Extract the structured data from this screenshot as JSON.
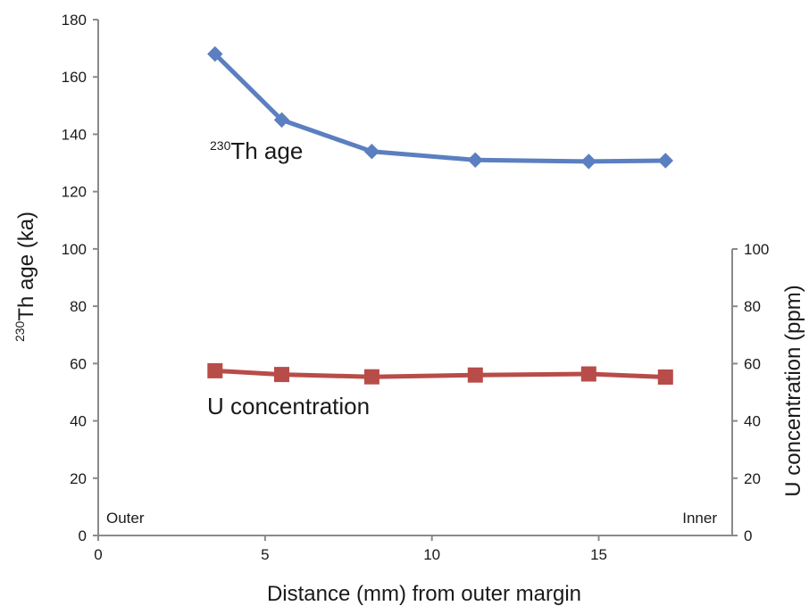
{
  "chart_data": {
    "type": "line",
    "xlabel": "Distance (mm) from outer margin",
    "ylabel_left_sup": "230",
    "ylabel_left": "Th age (ka)",
    "ylabel_right": "U concentration (ppm)",
    "xlim": [
      0,
      19
    ],
    "xticks": [
      "0",
      "5",
      "10",
      "15"
    ],
    "ylim_left": [
      0,
      180
    ],
    "yticks_left": [
      "0",
      "20",
      "40",
      "60",
      "80",
      "100",
      "120",
      "140",
      "160",
      "180"
    ],
    "ylim_right": [
      0,
      100
    ],
    "yticks_right": [
      "0",
      "20",
      "40",
      "60",
      "80",
      "100"
    ],
    "corner_left": "Outer",
    "corner_right": "Inner",
    "grid": false,
    "series": [
      {
        "name_sup": "230",
        "name": "Th age",
        "axis": "left",
        "color": "#5b7fc0",
        "marker": "diamond",
        "x": [
          3.5,
          5.5,
          8.2,
          11.3,
          14.7,
          17.0
        ],
        "y": [
          168,
          145,
          134,
          131,
          130.5,
          130.8
        ]
      },
      {
        "name": "U concentration",
        "axis": "right",
        "color": "#b84c48",
        "marker": "square",
        "x": [
          3.5,
          5.5,
          8.2,
          11.3,
          14.7,
          17.0
        ],
        "y": [
          57.5,
          56.2,
          55.4,
          56.0,
          56.4,
          55.3
        ]
      }
    ]
  }
}
